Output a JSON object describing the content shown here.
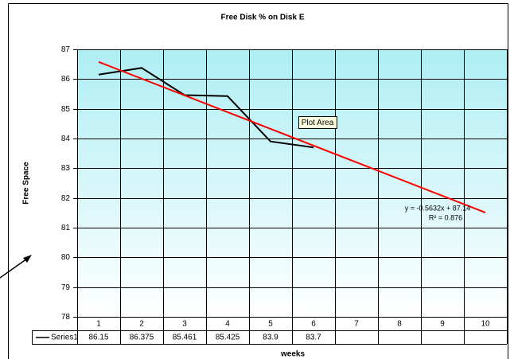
{
  "chart_data": {
    "type": "line",
    "title": "Free Disk % on Disk E",
    "x_label": "weeks",
    "y_label": "Free Space",
    "categories": [
      1,
      2,
      3,
      4,
      5,
      6,
      7,
      8,
      9,
      10
    ],
    "series": [
      {
        "name": "Series1",
        "color": "#000000",
        "values": [
          86.15,
          86.375,
          85.461,
          85.425,
          83.9,
          83.7,
          null,
          null,
          null,
          null
        ]
      }
    ],
    "ylim": [
      78,
      87
    ],
    "yticks": [
      78,
      79,
      80,
      81,
      82,
      83,
      84,
      85,
      86,
      87
    ],
    "grid": true,
    "trendline": {
      "color": "#ff0000",
      "slope": -0.5632,
      "intercept": 87.14,
      "label": "y = -0.5632x + 87.14",
      "r2_label": "R² = 0.876",
      "r2": 0.876
    },
    "tooltip": "Plot Area"
  }
}
